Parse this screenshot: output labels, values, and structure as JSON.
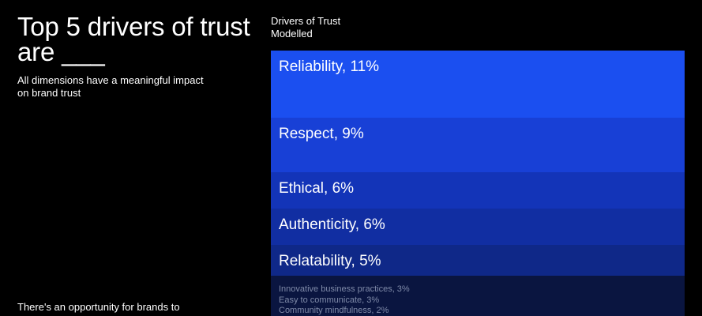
{
  "headline": "Top 5 drivers of trust are ___",
  "subtext": "All dimensions have a meaningful impact on brand trust",
  "footnote": "There's an opportunity for brands to",
  "chart_data": {
    "type": "bar",
    "title": "Drivers of Trust",
    "subtitle": "Modelled",
    "unit": "%",
    "items": [
      {
        "name": "Reliability",
        "value": 11,
        "label": "Reliability, 11%",
        "color": "#1b4ff0"
      },
      {
        "name": "Respect",
        "value": 9,
        "label": "Respect, 9%",
        "color": "#1840d6"
      },
      {
        "name": "Ethical",
        "value": 6,
        "label": "Ethical, 6%",
        "color": "#1334b8"
      },
      {
        "name": "Authenticity",
        "value": 6,
        "label": "Authenticity, 6%",
        "color": "#112ea2"
      },
      {
        "name": "Relatability",
        "value": 5,
        "label": "Relatability, 5%",
        "color": "#0f2888"
      }
    ],
    "minor_items": [
      {
        "name": "Innovative business practices",
        "value": 3,
        "label": "Innovative business practices, 3%"
      },
      {
        "name": "Easy to communicate",
        "value": 3,
        "label": "Easy to communicate, 3%"
      },
      {
        "name": "Community mindfulness",
        "value": 2,
        "label": "Community mindfulness, 2%"
      }
    ],
    "minor_color": "#0a1540"
  }
}
